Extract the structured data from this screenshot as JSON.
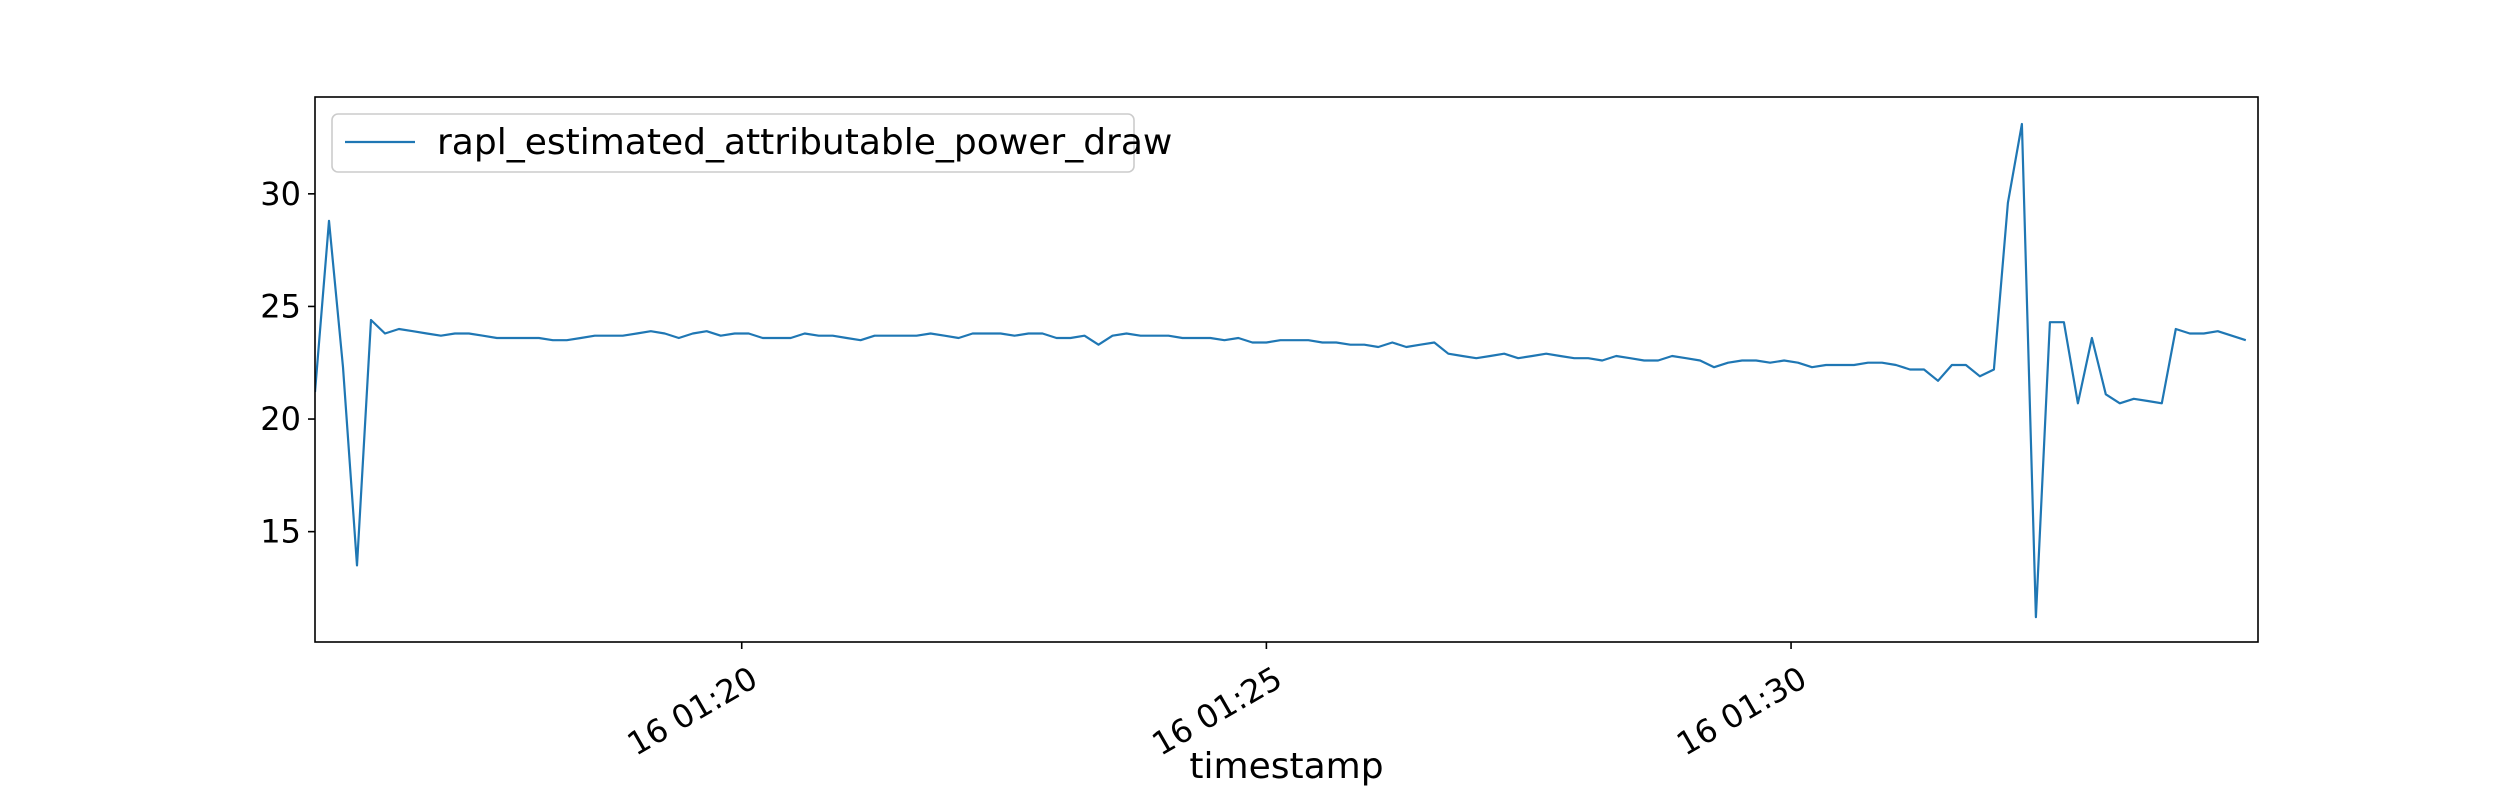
{
  "chart_data": {
    "type": "line",
    "title": "",
    "xlabel": "timestamp",
    "ylabel": "",
    "x_range": [
      "2000-01-16 01:15:56",
      "2000-01-16 01:34:27"
    ],
    "ylim": [
      10.1,
      34.3
    ],
    "y_ticks": [
      15,
      20,
      25,
      30
    ],
    "x_ticks": [
      {
        "value": "2000-01-16 01:20:00",
        "label": "16 01:20"
      },
      {
        "value": "2000-01-16 01:25:00",
        "label": "16 01:25"
      },
      {
        "value": "2000-01-16 01:30:00",
        "label": "16 01:30"
      }
    ],
    "grid": false,
    "legend": {
      "position": "top-left",
      "entries": [
        "rapl_estimated_attributable_power_draw"
      ]
    },
    "colors": {
      "series": "#1f77b4"
    },
    "series": [
      {
        "name": "rapl_estimated_attributable_power_draw",
        "x_start": "2000-01-16 01:15:56",
        "x_step_seconds": 8,
        "values": [
          21.2,
          28.8,
          22.3,
          13.5,
          24.4,
          23.8,
          24.0,
          23.9,
          23.8,
          23.7,
          23.8,
          23.8,
          23.7,
          23.6,
          23.6,
          23.6,
          23.6,
          23.5,
          23.5,
          23.6,
          23.7,
          23.7,
          23.7,
          23.8,
          23.9,
          23.8,
          23.6,
          23.8,
          23.9,
          23.7,
          23.8,
          23.8,
          23.6,
          23.6,
          23.6,
          23.8,
          23.7,
          23.7,
          23.6,
          23.5,
          23.7,
          23.7,
          23.7,
          23.7,
          23.8,
          23.7,
          23.6,
          23.8,
          23.8,
          23.8,
          23.7,
          23.8,
          23.8,
          23.6,
          23.6,
          23.7,
          23.3,
          23.7,
          23.8,
          23.7,
          23.7,
          23.7,
          23.6,
          23.6,
          23.6,
          23.5,
          23.6,
          23.4,
          23.4,
          23.5,
          23.5,
          23.5,
          23.4,
          23.4,
          23.3,
          23.3,
          23.2,
          23.4,
          23.2,
          23.3,
          23.4,
          22.9,
          22.8,
          22.7,
          22.8,
          22.9,
          22.7,
          22.8,
          22.9,
          22.8,
          22.7,
          22.7,
          22.6,
          22.8,
          22.7,
          22.6,
          22.6,
          22.8,
          22.7,
          22.6,
          22.3,
          22.5,
          22.6,
          22.6,
          22.5,
          22.6,
          22.5,
          22.3,
          22.4,
          22.4,
          22.4,
          22.5,
          22.5,
          22.4,
          22.2,
          22.2,
          21.7,
          22.4,
          22.4,
          21.9,
          22.2,
          29.6,
          33.1,
          11.2,
          24.3,
          24.3,
          20.7,
          23.6,
          21.1,
          20.7,
          20.9,
          20.8,
          20.7,
          24.0,
          23.8,
          23.8,
          23.9,
          23.7,
          23.5
        ]
      }
    ]
  }
}
